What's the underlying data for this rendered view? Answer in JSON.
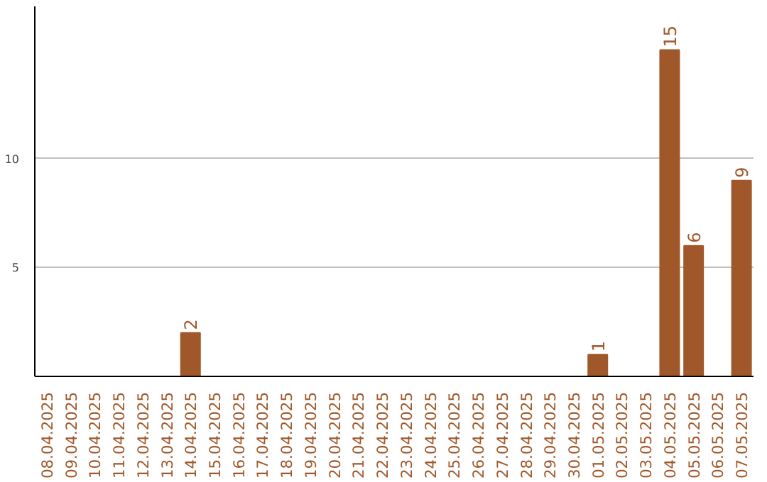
{
  "chart_data": {
    "type": "bar",
    "categories": [
      "08.04.2025",
      "09.04.2025",
      "10.04.2025",
      "11.04.2025",
      "12.04.2025",
      "13.04.2025",
      "14.04.2025",
      "15.04.2025",
      "16.04.2025",
      "17.04.2025",
      "18.04.2025",
      "19.04.2025",
      "20.04.2025",
      "21.04.2025",
      "22.04.2025",
      "23.04.2025",
      "24.04.2025",
      "25.04.2025",
      "26.04.2025",
      "27.04.2025",
      "28.04.2025",
      "29.04.2025",
      "30.04.2025",
      "01.05.2025",
      "02.05.2025",
      "03.05.2025",
      "04.05.2025",
      "05.05.2025",
      "06.05.2025",
      "07.05.2025"
    ],
    "values": [
      0,
      0,
      0,
      0,
      0,
      0,
      2,
      0,
      0,
      0,
      0,
      0,
      0,
      0,
      0,
      0,
      0,
      0,
      0,
      0,
      0,
      0,
      0,
      1,
      0,
      0,
      15,
      6,
      0,
      9
    ],
    "value_labels": [
      null,
      null,
      null,
      null,
      null,
      null,
      "2",
      null,
      null,
      null,
      null,
      null,
      null,
      null,
      null,
      null,
      null,
      null,
      null,
      null,
      null,
      null,
      null,
      "1",
      null,
      null,
      "15",
      "6",
      null,
      "9"
    ],
    "color": "#a0582a",
    "ylim": [
      0,
      17
    ],
    "yticks": [
      5,
      10
    ],
    "grid": "y"
  }
}
